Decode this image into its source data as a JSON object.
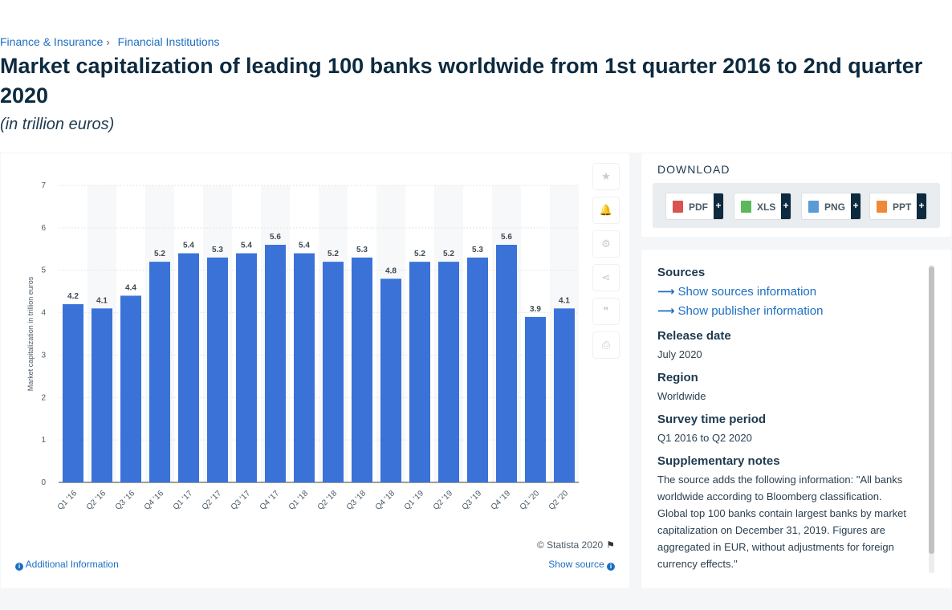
{
  "breadcrumb": {
    "items": [
      "Finance & Insurance",
      "Financial Institutions"
    ],
    "separator": "›"
  },
  "page": {
    "title": "Market capitalization of leading 100 banks worldwide from 1st quarter 2016 to 2nd quarter 2020",
    "subtitle": "(in trillion euros)"
  },
  "colors": {
    "bar": "#3a72d8",
    "accent_link": "#1b6ec2",
    "title": "#0d2a3f",
    "background": "#f4f6f8"
  },
  "toolbar": {
    "icons": [
      "star-icon",
      "bell-icon",
      "gear-icon",
      "share-icon",
      "quote-icon",
      "print-icon"
    ],
    "glyphs": [
      "★",
      "🔔",
      "⚙",
      "⋖",
      "❞",
      "⎙"
    ]
  },
  "chart_data": {
    "type": "bar",
    "categories": [
      "Q1 '16",
      "Q2 '16",
      "Q3 '16",
      "Q4 '16",
      "Q1 '17",
      "Q2 '17",
      "Q3 '17",
      "Q4 '17",
      "Q1 '18",
      "Q2 '18",
      "Q3 '18",
      "Q4 '18",
      "Q1 '19",
      "Q2 '19",
      "Q3 '19",
      "Q4 '19",
      "Q1 '20",
      "Q2 '20"
    ],
    "values": [
      4.2,
      4.1,
      4.4,
      5.2,
      5.4,
      5.3,
      5.4,
      5.6,
      5.4,
      5.2,
      5.3,
      4.8,
      5.2,
      5.2,
      5.3,
      5.6,
      3.9,
      4.1
    ],
    "ylabel": "Market capitalization in trillion euros",
    "xlabel": "",
    "ylim": [
      0,
      7
    ],
    "yticks": [
      0,
      1,
      2,
      3,
      4,
      5,
      6,
      7
    ],
    "grid": true,
    "data_labels": true
  },
  "chart_footer": {
    "copyright": "© Statista 2020",
    "additional_info": "Additional Information",
    "show_source": "Show source"
  },
  "download": {
    "title": "DOWNLOAD",
    "buttons": [
      {
        "label": "PDF",
        "icon": "pdf-file-icon",
        "color": "#d9534f"
      },
      {
        "label": "XLS",
        "icon": "xls-file-icon",
        "color": "#5cb85c"
      },
      {
        "label": "PNG",
        "icon": "png-file-icon",
        "color": "#5b9bd5"
      },
      {
        "label": "PPT",
        "icon": "ppt-file-icon",
        "color": "#f0883a"
      }
    ],
    "plus": "+"
  },
  "meta": {
    "sources_head": "Sources",
    "show_sources": "Show sources information",
    "show_publisher": "Show publisher information",
    "release_head": "Release date",
    "release_val": "July 2020",
    "region_head": "Region",
    "region_val": "Worldwide",
    "survey_head": "Survey time period",
    "survey_val": "Q1 2016 to Q2 2020",
    "notes_head": "Supplementary notes",
    "notes_val": "The source adds the following information: \"All banks worldwide according to Bloomberg classification. Global top 100 banks contain largest banks by market capitalization on December 31, 2019. Figures are aggregated in EUR, without adjustments for foreign currency effects.\""
  }
}
